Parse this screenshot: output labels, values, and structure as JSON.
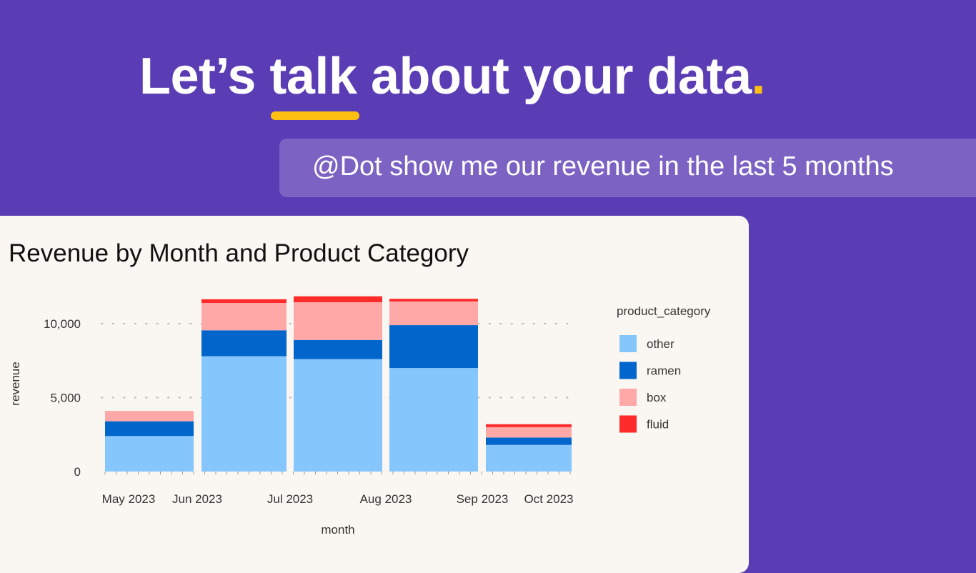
{
  "headline": {
    "before": "Let’s ",
    "highlight": "talk",
    "after": " about your data",
    "dot": "."
  },
  "prompt": "@Dot show me our revenue in the last 5 months",
  "colors": {
    "background": "#5a3cb4",
    "accent": "#fdbf12",
    "bubble": "#7c62c3",
    "panel": "#faf7f2"
  },
  "chart_data": {
    "type": "bar",
    "stacked": true,
    "title": "Revenue by Month and Product Category",
    "xlabel": "month",
    "ylabel": "revenue",
    "categories": [
      "May 2023",
      "Jun 2023",
      "Jul 2023",
      "Aug 2023",
      "Sep 2023"
    ],
    "x_tick_labels": [
      "May 2023",
      "Jun 2023",
      "Jul 2023",
      "Aug 2023",
      "Sep 2023",
      "Oct 2023"
    ],
    "y_ticks": [
      0,
      5000,
      10000
    ],
    "y_tick_labels": [
      "0",
      "5,000",
      "10,000"
    ],
    "ylim": [
      0,
      12000
    ],
    "grid": true,
    "legend_title": "product_category",
    "legend_placement": "right",
    "series": [
      {
        "name": "other",
        "color": "#85c6fd",
        "values": [
          2400,
          7800,
          7600,
          7000,
          1800
        ]
      },
      {
        "name": "ramen",
        "color": "#0066cc",
        "values": [
          1000,
          1750,
          1300,
          2900,
          500
        ]
      },
      {
        "name": "box",
        "color": "#ffa8a8",
        "values": [
          700,
          1850,
          2550,
          1600,
          700
        ]
      },
      {
        "name": "fluid",
        "color": "#ff2a2a",
        "values": [
          0,
          250,
          400,
          180,
          200
        ]
      }
    ]
  }
}
